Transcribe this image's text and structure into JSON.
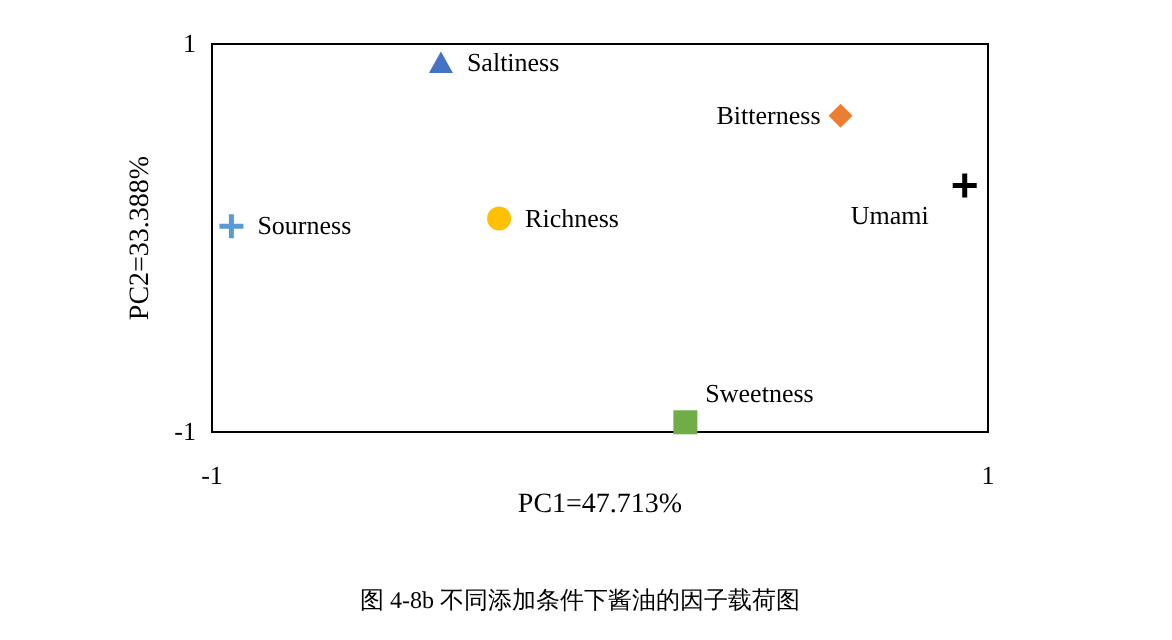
{
  "chart_data": {
    "type": "scatter",
    "xlabel": "PC1=47.713%",
    "ylabel": "PC2=33.388%",
    "xlim": [
      -1,
      1
    ],
    "ylim": [
      -1,
      1
    ],
    "xticks": [
      -1,
      1
    ],
    "yticks": [
      -1,
      1
    ],
    "series": [
      {
        "name": "Saltiness",
        "color": "#4472c4",
        "marker": "triangle",
        "x": [
          -0.41
        ],
        "values": [
          0.9
        ]
      },
      {
        "name": "Bitterness",
        "color": "#ed7d31",
        "marker": "diamond",
        "x": [
          0.62
        ],
        "values": [
          0.63
        ]
      },
      {
        "name": "Umami",
        "color": "#000000",
        "marker": "cross",
        "x": [
          0.94
        ],
        "values": [
          0.27
        ]
      },
      {
        "name": "Sourness",
        "color": "#5b9bd5",
        "marker": "cross",
        "x": [
          -0.95
        ],
        "values": [
          0.06
        ]
      },
      {
        "name": "Richness",
        "color": "#ffc000",
        "marker": "circle",
        "x": [
          -0.26
        ],
        "values": [
          0.1
        ]
      },
      {
        "name": "Sweetness",
        "color": "#70ad47",
        "marker": "square",
        "x": [
          0.22
        ],
        "values": [
          -0.95
        ]
      }
    ],
    "annotations": [
      "图 4-8b  不同添加条件下酱油的因子载荷图"
    ]
  }
}
